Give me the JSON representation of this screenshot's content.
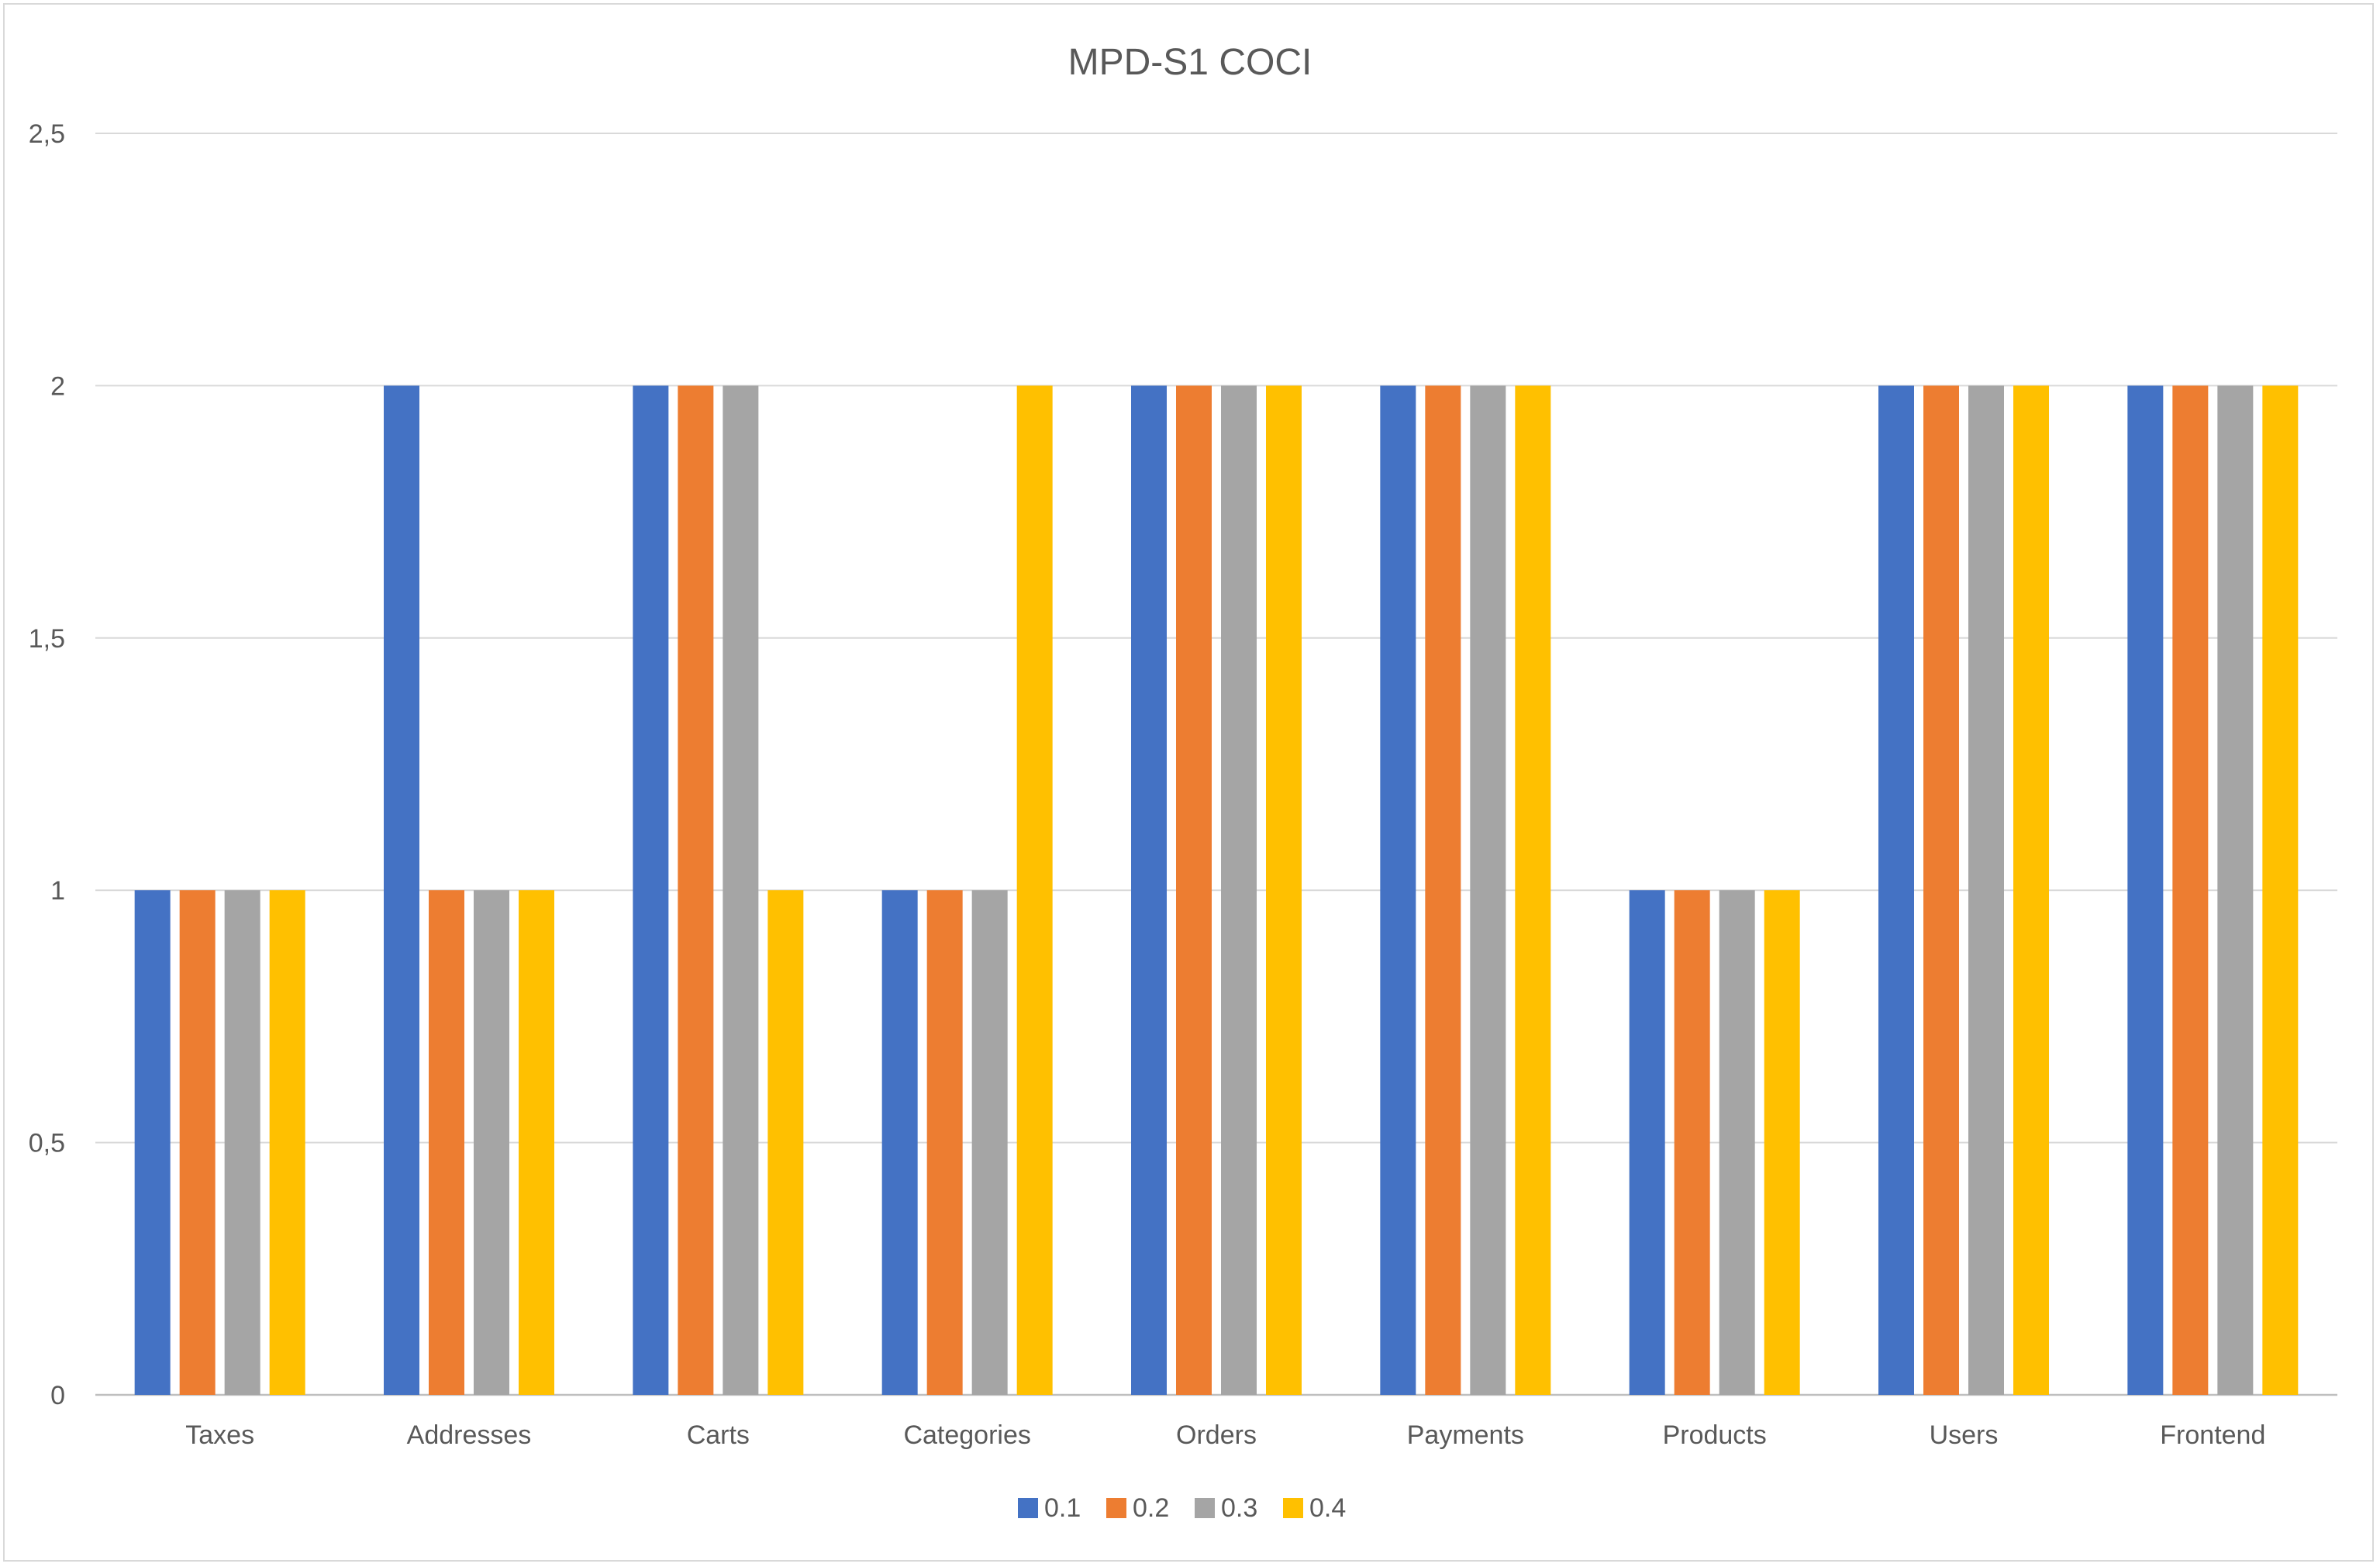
{
  "chart_data": {
    "type": "bar",
    "title": "MPD-S1 COCI",
    "xlabel": "",
    "ylabel": "",
    "ylim": [
      0,
      2.5
    ],
    "yticks": [
      "0",
      "0,5",
      "1",
      "1,5",
      "2",
      "2,5"
    ],
    "grid": true,
    "legend_position": "bottom",
    "categories": [
      "Taxes",
      "Addresses",
      "Carts",
      "Categories",
      "Orders",
      "Payments",
      "Products",
      "Users",
      "Frontend"
    ],
    "series": [
      {
        "name": "0.1",
        "color": "#4472C4",
        "values": [
          1,
          2,
          2,
          1,
          2,
          2,
          1,
          2,
          2
        ]
      },
      {
        "name": "0.2",
        "color": "#ED7D31",
        "values": [
          1,
          1,
          2,
          1,
          2,
          2,
          1,
          2,
          2
        ]
      },
      {
        "name": "0.3",
        "color": "#A5A5A5",
        "values": [
          1,
          1,
          2,
          1,
          2,
          2,
          1,
          2,
          2
        ]
      },
      {
        "name": "0.4",
        "color": "#FFC000",
        "values": [
          1,
          1,
          1,
          2,
          2,
          2,
          1,
          2,
          2
        ]
      }
    ]
  }
}
